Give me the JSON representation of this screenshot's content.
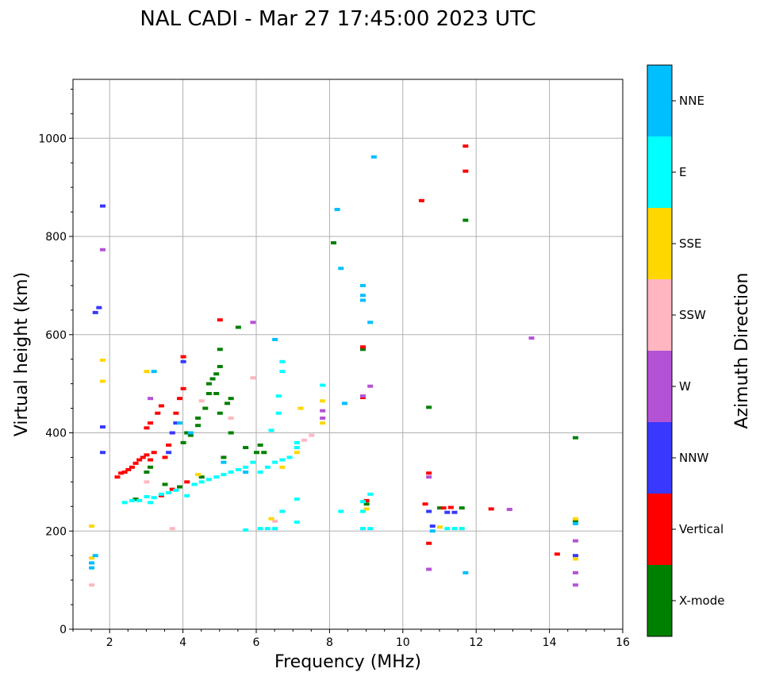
{
  "chart_data": {
    "type": "scatter",
    "title": "NAL CADI - Mar 27 17:45:00 2023 UTC",
    "xlabel": "Frequency (MHz)",
    "ylabel": "Virtual height (km)",
    "xlim": [
      1,
      16
    ],
    "ylim": [
      0,
      1120
    ],
    "xticks": [
      2,
      4,
      6,
      8,
      10,
      12,
      14,
      16
    ],
    "yticks": [
      0,
      200,
      400,
      600,
      800,
      1000
    ],
    "grid": true,
    "colorbar": {
      "label": "Azimuth Direction",
      "categories": [
        "X-mode",
        "Vertical",
        "NNW",
        "W",
        "SSW",
        "SSE",
        "E",
        "NNE"
      ],
      "colors": {
        "X-mode": "#008000",
        "Vertical": "#ff0000",
        "NNW": "#3838ff",
        "W": "#b452d6",
        "SSW": "#ffb6c1",
        "SSE": "#ffd700",
        "E": "#00ffff",
        "NNE": "#00bfff"
      }
    },
    "series": [
      {
        "name": "X-mode",
        "points": [
          [
            2.7,
            265
          ],
          [
            3.0,
            320
          ],
          [
            3.1,
            330
          ],
          [
            3.5,
            295
          ],
          [
            3.9,
            290
          ],
          [
            4.0,
            380
          ],
          [
            4.1,
            400
          ],
          [
            4.2,
            395
          ],
          [
            4.4,
            430
          ],
          [
            4.4,
            415
          ],
          [
            4.5,
            310
          ],
          [
            4.6,
            450
          ],
          [
            4.7,
            480
          ],
          [
            4.7,
            500
          ],
          [
            4.8,
            510
          ],
          [
            4.9,
            480
          ],
          [
            4.9,
            520
          ],
          [
            5.0,
            440
          ],
          [
            5.0,
            535
          ],
          [
            5.0,
            570
          ],
          [
            5.1,
            350
          ],
          [
            5.2,
            460
          ],
          [
            5.3,
            470
          ],
          [
            5.3,
            400
          ],
          [
            5.5,
            615
          ],
          [
            5.7,
            370
          ],
          [
            6.0,
            360
          ],
          [
            6.1,
            375
          ],
          [
            6.2,
            360
          ],
          [
            8.1,
            787
          ],
          [
            8.9,
            570
          ],
          [
            9.0,
            255
          ],
          [
            10.7,
            452
          ],
          [
            11.0,
            247
          ],
          [
            11.6,
            247
          ],
          [
            11.7,
            833
          ],
          [
            14.7,
            390
          ],
          [
            14.7,
            220
          ]
        ]
      },
      {
        "name": "Vertical",
        "points": [
          [
            2.2,
            310
          ],
          [
            2.3,
            318
          ],
          [
            2.4,
            320
          ],
          [
            2.5,
            325
          ],
          [
            2.6,
            330
          ],
          [
            2.7,
            338
          ],
          [
            2.8,
            345
          ],
          [
            2.9,
            350
          ],
          [
            3.0,
            355
          ],
          [
            3.0,
            410
          ],
          [
            3.1,
            420
          ],
          [
            3.1,
            345
          ],
          [
            3.2,
            360
          ],
          [
            3.3,
            440
          ],
          [
            3.4,
            455
          ],
          [
            3.5,
            350
          ],
          [
            3.6,
            375
          ],
          [
            3.7,
            400
          ],
          [
            3.8,
            440
          ],
          [
            3.9,
            470
          ],
          [
            4.0,
            490
          ],
          [
            4.0,
            555
          ],
          [
            4.1,
            300
          ],
          [
            3.4,
            272
          ],
          [
            3.7,
            285
          ],
          [
            5.0,
            630
          ],
          [
            8.9,
            575
          ],
          [
            8.9,
            472
          ],
          [
            9.0,
            262
          ],
          [
            10.6,
            255
          ],
          [
            10.7,
            318
          ],
          [
            10.7,
            175
          ],
          [
            11.1,
            247
          ],
          [
            11.3,
            248
          ],
          [
            11.7,
            984
          ],
          [
            11.7,
            933
          ],
          [
            12.4,
            245
          ],
          [
            14.2,
            153
          ],
          [
            10.5,
            873
          ]
        ]
      },
      {
        "name": "NNW",
        "points": [
          [
            1.6,
            645
          ],
          [
            1.7,
            655
          ],
          [
            1.8,
            862
          ],
          [
            1.8,
            412
          ],
          [
            1.8,
            360
          ],
          [
            3.6,
            360
          ],
          [
            3.7,
            400
          ],
          [
            3.8,
            420
          ],
          [
            4.0,
            545
          ],
          [
            10.7,
            240
          ],
          [
            10.8,
            210
          ],
          [
            11.2,
            238
          ],
          [
            11.4,
            238
          ],
          [
            14.7,
            150
          ]
        ]
      },
      {
        "name": "W",
        "points": [
          [
            1.8,
            773
          ],
          [
            3.1,
            470
          ],
          [
            5.9,
            625
          ],
          [
            7.8,
            445
          ],
          [
            7.8,
            430
          ],
          [
            8.9,
            475
          ],
          [
            9.1,
            495
          ],
          [
            10.7,
            310
          ],
          [
            10.7,
            122
          ],
          [
            12.9,
            244
          ],
          [
            13.5,
            593
          ],
          [
            14.7,
            180
          ],
          [
            14.7,
            115
          ],
          [
            14.7,
            90
          ]
        ]
      },
      {
        "name": "SSW",
        "points": [
          [
            1.5,
            90
          ],
          [
            3.0,
            300
          ],
          [
            3.7,
            205
          ],
          [
            4.5,
            465
          ],
          [
            5.3,
            430
          ],
          [
            5.9,
            512
          ],
          [
            6.5,
            220
          ],
          [
            6.7,
            240
          ],
          [
            7.3,
            385
          ],
          [
            7.5,
            395
          ],
          [
            8.9,
            205
          ]
        ]
      },
      {
        "name": "SSE",
        "points": [
          [
            1.5,
            210
          ],
          [
            1.5,
            145
          ],
          [
            1.5,
            135
          ],
          [
            1.8,
            548
          ],
          [
            1.8,
            505
          ],
          [
            3.0,
            525
          ],
          [
            4.4,
            315
          ],
          [
            6.4,
            225
          ],
          [
            6.7,
            330
          ],
          [
            7.1,
            360
          ],
          [
            7.2,
            450
          ],
          [
            7.8,
            465
          ],
          [
            7.8,
            420
          ],
          [
            9.0,
            245
          ],
          [
            11.0,
            208
          ],
          [
            11.6,
            205
          ],
          [
            14.7,
            225
          ],
          [
            14.7,
            143
          ]
        ]
      },
      {
        "name": "E",
        "points": [
          [
            2.4,
            258
          ],
          [
            2.6,
            262
          ],
          [
            2.8,
            262
          ],
          [
            3.0,
            270
          ],
          [
            3.1,
            258
          ],
          [
            3.2,
            268
          ],
          [
            3.4,
            275
          ],
          [
            3.6,
            278
          ],
          [
            3.8,
            283
          ],
          [
            4.1,
            272
          ],
          [
            4.3,
            295
          ],
          [
            4.5,
            300
          ],
          [
            4.7,
            305
          ],
          [
            4.9,
            310
          ],
          [
            5.1,
            315
          ],
          [
            5.3,
            320
          ],
          [
            5.5,
            325
          ],
          [
            5.7,
            330
          ],
          [
            5.9,
            340
          ],
          [
            6.1,
            320
          ],
          [
            6.3,
            330
          ],
          [
            6.5,
            340
          ],
          [
            6.7,
            345
          ],
          [
            6.9,
            350
          ],
          [
            7.1,
            370
          ],
          [
            7.1,
            380
          ],
          [
            5.7,
            202
          ],
          [
            6.1,
            205
          ],
          [
            6.3,
            205
          ],
          [
            6.5,
            205
          ],
          [
            6.7,
            240
          ],
          [
            6.6,
            440
          ],
          [
            6.6,
            475
          ],
          [
            6.7,
            525
          ],
          [
            6.7,
            545
          ],
          [
            6.4,
            405
          ],
          [
            7.1,
            218
          ],
          [
            7.1,
            265
          ],
          [
            7.8,
            497
          ],
          [
            8.3,
            240
          ],
          [
            8.9,
            260
          ],
          [
            8.9,
            240
          ],
          [
            8.9,
            205
          ],
          [
            9.1,
            205
          ],
          [
            9.1,
            275
          ],
          [
            11.2,
            205
          ],
          [
            11.4,
            205
          ],
          [
            11.6,
            205
          ]
        ]
      },
      {
        "name": "NNE",
        "points": [
          [
            1.5,
            135
          ],
          [
            1.5,
            125
          ],
          [
            1.6,
            150
          ],
          [
            3.2,
            525
          ],
          [
            3.9,
            420
          ],
          [
            4.2,
            400
          ],
          [
            5.1,
            340
          ],
          [
            5.7,
            320
          ],
          [
            6.5,
            590
          ],
          [
            8.2,
            855
          ],
          [
            8.3,
            735
          ],
          [
            8.4,
            460
          ],
          [
            8.9,
            700
          ],
          [
            8.9,
            680
          ],
          [
            8.9,
            670
          ],
          [
            9.1,
            625
          ],
          [
            9.2,
            962
          ],
          [
            10.8,
            200
          ],
          [
            11.7,
            115
          ],
          [
            14.7,
            215
          ]
        ]
      }
    ]
  }
}
